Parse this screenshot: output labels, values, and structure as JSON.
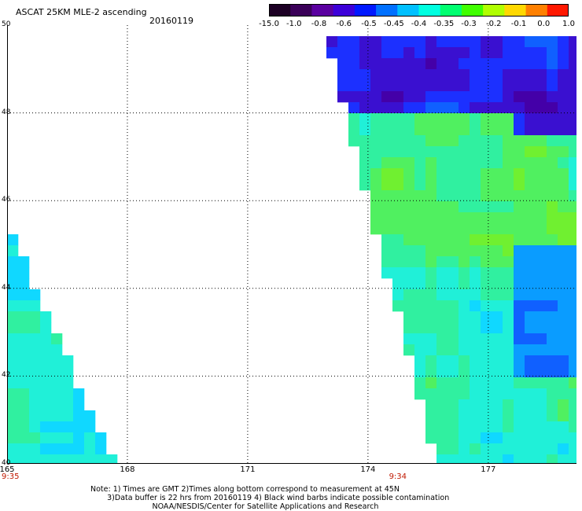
{
  "header": {
    "title": "ASCAT 25KM MLE-2 ascending",
    "date": "20160119"
  },
  "colorbar": {
    "labels": [
      "-15.0",
      "-1.0",
      "-0.8",
      "-0.6",
      "-0.5",
      "-0.45",
      "-0.4",
      "-0.35",
      "-0.3",
      "-0.2",
      "-0.1",
      "0.0",
      "1.0"
    ],
    "colors": [
      "#1c0024",
      "#3a0058",
      "#5a00a0",
      "#3c00d8",
      "#0018ff",
      "#0070ff",
      "#00c0ff",
      "#00ffe0",
      "#00ff70",
      "#40ff00",
      "#b0ff00",
      "#ffd800",
      "#ff8000",
      "#ff1800"
    ]
  },
  "map": {
    "lat_range": [
      40,
      50
    ],
    "lon_range": [
      165,
      179.2
    ],
    "lat_ticks": [
      "50",
      "48",
      "46",
      "44",
      "42",
      "40"
    ],
    "lon_ticks": [
      "165",
      "168",
      "171",
      "174",
      "177"
    ],
    "pass_times": [
      {
        "label": "9:35",
        "lon": 165.0
      },
      {
        "label": "9:34",
        "lon": 174.7
      }
    ]
  },
  "notes": [
    "Note: 1) Times are GMT 2)Times along bottom correspond to measurement at 45N",
    "3)Data buffer is 22 hrs from 20160119 4) Black wind barbs indicate possible contamination",
    "NOAA/NESDIS/Center for Satellite Applications and Research"
  ]
}
